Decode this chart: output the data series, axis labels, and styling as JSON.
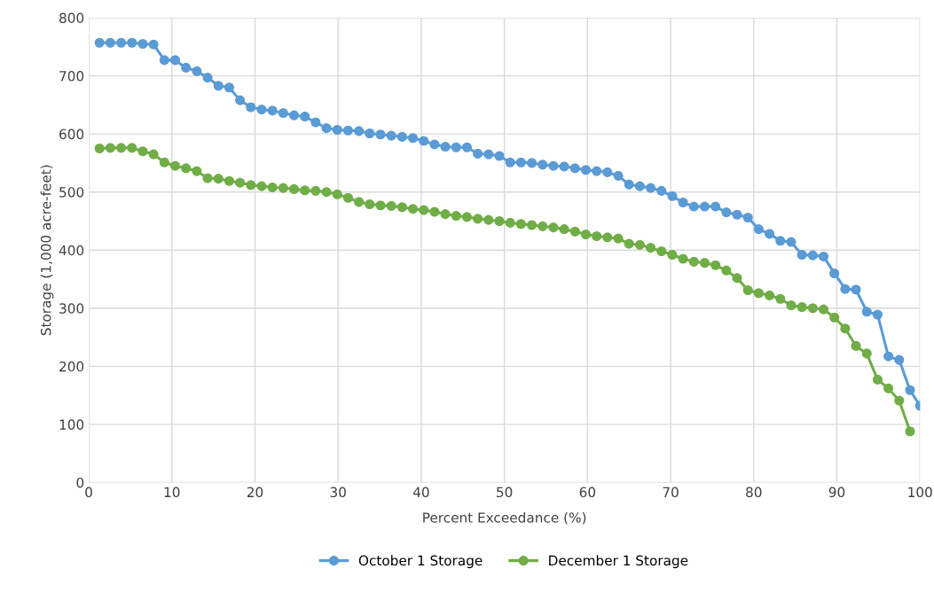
{
  "chart_data": {
    "type": "line",
    "xlabel": "Percent Exceedance (%)",
    "ylabel": "Storage (1,000 acre-feet)",
    "xlim": [
      0,
      100
    ],
    "xticks": [
      0,
      10,
      20,
      30,
      40,
      50,
      60,
      70,
      80,
      90,
      100
    ],
    "ylim": [
      0,
      800
    ],
    "yticks": [
      0,
      100,
      200,
      300,
      400,
      500,
      600,
      700,
      800
    ],
    "grid": true,
    "legend": "bottom",
    "marker": "circle",
    "line_style": "solid",
    "series": [
      {
        "name": "October 1 Storage",
        "color": "#5b9bd5",
        "x": [
          1.3,
          2.6,
          3.9,
          5.2,
          6.5,
          7.8,
          9.1,
          10.4,
          11.7,
          13.0,
          14.3,
          15.6,
          16.9,
          18.2,
          19.5,
          20.8,
          22.1,
          23.4,
          24.7,
          26.0,
          27.3,
          28.6,
          29.9,
          31.2,
          32.5,
          33.8,
          35.1,
          36.4,
          37.7,
          39.0,
          40.3,
          41.6,
          42.9,
          44.2,
          45.5,
          46.8,
          48.1,
          49.4,
          50.7,
          52.0,
          53.3,
          54.6,
          55.9,
          57.2,
          58.5,
          59.8,
          61.1,
          62.4,
          63.7,
          65.0,
          66.3,
          67.6,
          68.9,
          70.2,
          71.5,
          72.8,
          74.1,
          75.4,
          76.7,
          78.0,
          79.3,
          80.6,
          81.9,
          83.2,
          84.5,
          85.8,
          87.1,
          88.4,
          89.7,
          91.0,
          92.3,
          93.6,
          94.9,
          96.2,
          97.5,
          98.8,
          100
        ],
        "values": [
          757,
          757,
          757,
          757,
          755,
          754,
          727,
          727,
          714,
          708,
          697,
          683,
          680,
          658,
          646,
          642,
          640,
          636,
          632,
          630,
          620,
          610,
          607,
          606,
          605,
          601,
          599,
          597,
          595,
          593,
          588,
          582,
          578,
          577,
          577,
          566,
          565,
          562,
          551,
          551,
          550,
          547,
          545,
          544,
          541,
          538,
          536,
          534,
          528,
          513,
          510,
          507,
          502,
          493,
          482,
          475,
          475,
          475,
          465,
          461,
          456,
          436,
          428,
          416,
          414,
          392,
          391,
          389,
          360,
          333,
          332,
          294,
          289,
          217,
          211,
          159,
          132
        ]
      },
      {
        "name": "December 1 Storage",
        "color": "#70ad47",
        "x": [
          1.3,
          2.6,
          3.9,
          5.2,
          6.5,
          7.8,
          9.1,
          10.4,
          11.7,
          13.0,
          14.3,
          15.6,
          16.9,
          18.2,
          19.5,
          20.8,
          22.1,
          23.4,
          24.7,
          26.0,
          27.3,
          28.6,
          29.9,
          31.2,
          32.5,
          33.8,
          35.1,
          36.4,
          37.7,
          39.0,
          40.3,
          41.6,
          42.9,
          44.2,
          45.5,
          46.8,
          48.1,
          49.4,
          50.7,
          52.0,
          53.3,
          54.6,
          55.9,
          57.2,
          58.5,
          59.8,
          61.1,
          62.4,
          63.7,
          65.0,
          66.3,
          67.6,
          68.9,
          70.2,
          71.5,
          72.8,
          74.1,
          75.4,
          76.7,
          78.0,
          79.3,
          80.6,
          81.9,
          83.2,
          84.5,
          85.8,
          87.1,
          88.4,
          89.7,
          91.0,
          92.3,
          93.6,
          94.9,
          96.2,
          97.5,
          98.8
        ],
        "values": [
          575,
          576,
          576,
          576,
          570,
          565,
          551,
          545,
          541,
          536,
          524,
          523,
          519,
          516,
          512,
          510,
          508,
          507,
          505,
          503,
          502,
          500,
          496,
          490,
          483,
          479,
          477,
          476,
          474,
          471,
          469,
          466,
          462,
          459,
          457,
          454,
          452,
          450,
          447,
          445,
          443,
          441,
          439,
          436,
          432,
          427,
          424,
          422,
          420,
          411,
          409,
          404,
          398,
          392,
          385,
          380,
          378,
          374,
          365,
          352,
          331,
          326,
          322,
          316,
          305,
          302,
          300,
          298,
          284,
          265,
          235,
          222,
          177,
          162,
          141,
          88
        ]
      }
    ]
  }
}
